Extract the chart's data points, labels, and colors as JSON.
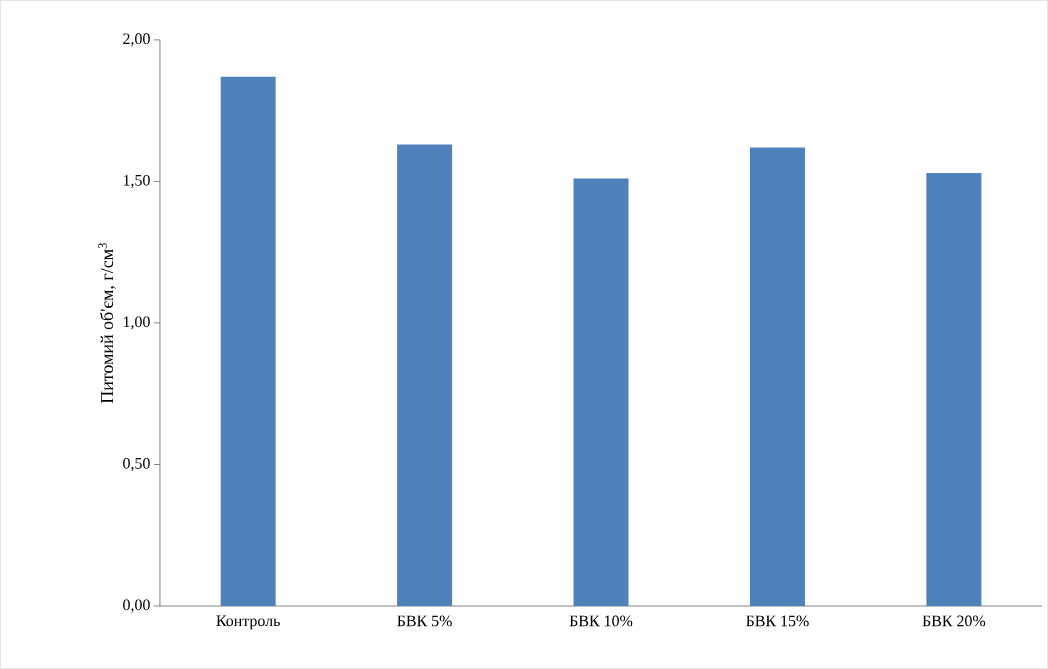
{
  "chart_data": {
    "type": "bar",
    "ylabel": "Питомий об'єм, г/см$^{3}$",
    "categories": [
      "Контроль",
      "БВК 5%",
      "БВК 10%",
      "БВК 15%",
      "БВК 20%"
    ],
    "values": [
      1.87,
      1.63,
      1.51,
      1.62,
      1.53
    ],
    "color": "#4f81bd",
    "ylim": [
      0,
      2
    ],
    "yticks": [
      {
        "value": 0,
        "label": "0,00"
      },
      {
        "value": 0.5,
        "label": "0,50"
      },
      {
        "value": 1,
        "label": "1,00"
      },
      {
        "value": 1.5,
        "label": "1,50"
      },
      {
        "value": 2,
        "label": "2,00"
      }
    ],
    "grid": false
  }
}
